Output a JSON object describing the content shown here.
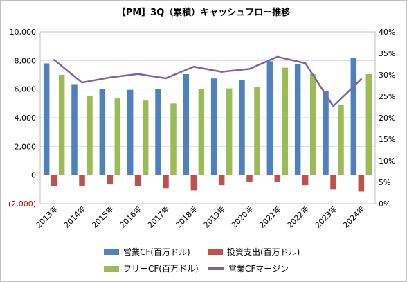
{
  "chart_data": {
    "type": "bar",
    "title": "【PM】3Q（累積）キャッシュフロー推移",
    "categories": [
      "2013年",
      "2014年",
      "2015年",
      "2016年",
      "2017年",
      "2018年",
      "2019年",
      "2020年",
      "2021年",
      "2022年",
      "2023年",
      "2024年"
    ],
    "y_left": {
      "min": -2000,
      "max": 10000,
      "ticks": [
        "(2,000)",
        "0",
        "2,000",
        "4,000",
        "6,000",
        "8,000",
        "10,000"
      ],
      "negative_tick_color": "#c00000"
    },
    "y_right": {
      "min": 0,
      "max": 40,
      "unit": "%",
      "ticks": [
        "0%",
        "5%",
        "10%",
        "15%",
        "20%",
        "25%",
        "30%",
        "35%",
        "40%"
      ]
    },
    "grid": true,
    "legend_position": "bottom",
    "series": [
      {
        "name": "営業CF(百万ドル)",
        "type": "bar",
        "axis": "left",
        "color": "#4f81bd",
        "values": [
          7800,
          6350,
          6000,
          5950,
          6000,
          7050,
          6750,
          6650,
          7950,
          7750,
          5850,
          8200
        ]
      },
      {
        "name": "投資支出(百万ドル)",
        "type": "bar",
        "axis": "left",
        "color": "#c0504d",
        "values": [
          -750,
          -750,
          -650,
          -750,
          -950,
          -1050,
          -700,
          -450,
          -450,
          -700,
          -1000,
          -1150
        ]
      },
      {
        "name": "フリーCF(百万ドル）",
        "type": "bar",
        "axis": "left",
        "color": "#9bbb59",
        "values": [
          7000,
          5550,
          5350,
          5200,
          5000,
          6000,
          6050,
          6150,
          7500,
          7050,
          4900,
          7050
        ]
      },
      {
        "name": "営業CFマージン",
        "type": "line",
        "axis": "right",
        "color": "#8064a2",
        "values": [
          33.5,
          28.2,
          29.4,
          30.2,
          29.2,
          31.9,
          30.7,
          31.4,
          34.2,
          32.7,
          22.7,
          29.0
        ]
      }
    ]
  }
}
